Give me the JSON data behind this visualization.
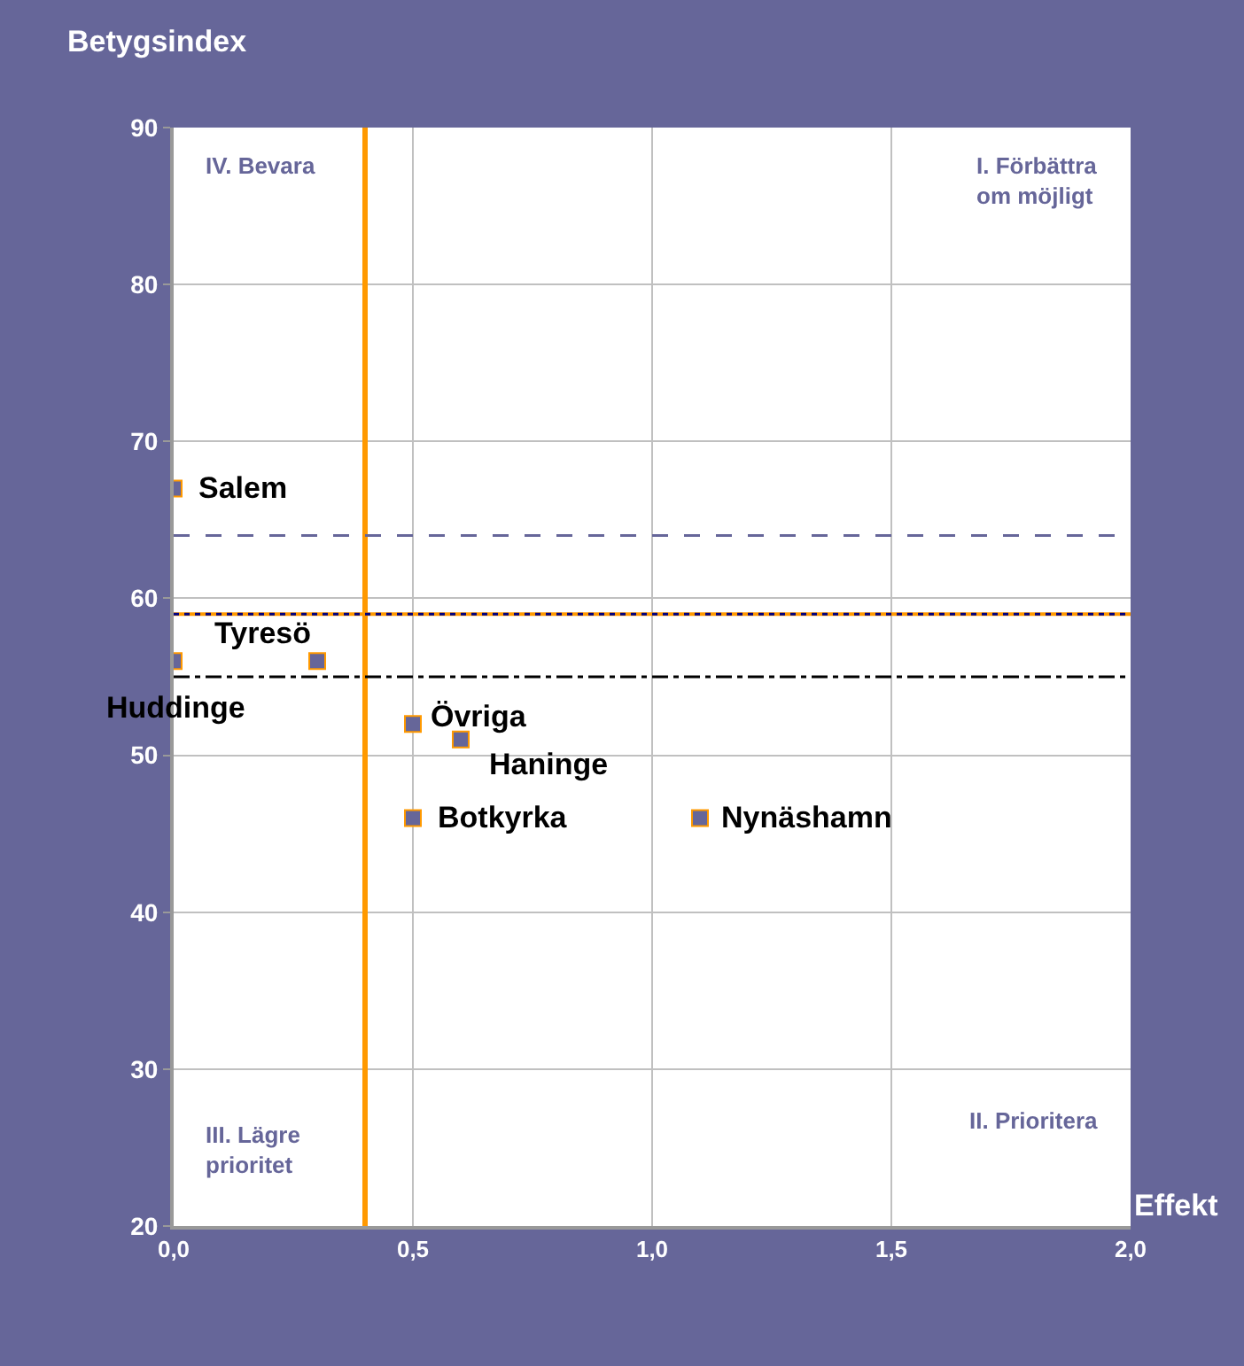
{
  "chart_data": {
    "type": "scatter",
    "xlabel": "Effekt",
    "ylabel": "Betygsindex",
    "x": [
      0,
      0,
      0.3,
      0.5,
      0.6,
      0.5,
      1.1
    ],
    "series": [
      {
        "color": "#666699",
        "values": [
          67,
          56,
          56,
          52,
          51,
          46,
          46
        ]
      }
    ],
    "annotations": [
      {
        "text": "Salem",
        "x": 0,
        "y": 67
      },
      {
        "text": "Huddinge",
        "x": 0,
        "y": 56
      },
      {
        "text": "Tyresö",
        "x": 0.3,
        "y": 56
      },
      {
        "text": "Övriga",
        "x": 0.5,
        "y": 52
      },
      {
        "text": "Haninge",
        "x": 0.6,
        "y": 51
      },
      {
        "text": "Botkyrka",
        "x": 0.5,
        "y": 46
      },
      {
        "text": "Nynäshamn",
        "x": 1.1,
        "y": 46
      },
      "IV. Bevara",
      "I. Förbättra\nom möjligt",
      "III. Lägre\nprioritet",
      "II. Prioritera"
    ],
    "ref_lines": [
      {
        "axis": "x",
        "value": 0.4,
        "color": "#ff9900",
        "line_style": "solid"
      },
      {
        "axis": "y",
        "value": 64,
        "color": "#666699",
        "line_style": "dashed"
      },
      {
        "axis": "y",
        "value": 59,
        "color": "#ff9900",
        "line_style": "solid"
      },
      {
        "axis": "y",
        "value": 59,
        "color": "#000080",
        "line_style": "dotted"
      },
      {
        "axis": "y",
        "value": 55,
        "color": "#000000",
        "line_style": "dashdot"
      }
    ],
    "xlim": [
      0,
      2
    ],
    "xticks": [
      {
        "value": 0,
        "label": "0,0"
      },
      {
        "value": 0.5,
        "label": "0,5"
      },
      {
        "value": 1,
        "label": "1,0"
      },
      {
        "value": 1.5,
        "label": "1,5"
      },
      {
        "value": 2,
        "label": "2,0"
      }
    ],
    "ylim": [
      20,
      90
    ],
    "yticks": [
      20,
      30,
      40,
      50,
      60,
      70,
      80,
      90
    ],
    "grid": true,
    "legend": false,
    "marker": "square"
  }
}
